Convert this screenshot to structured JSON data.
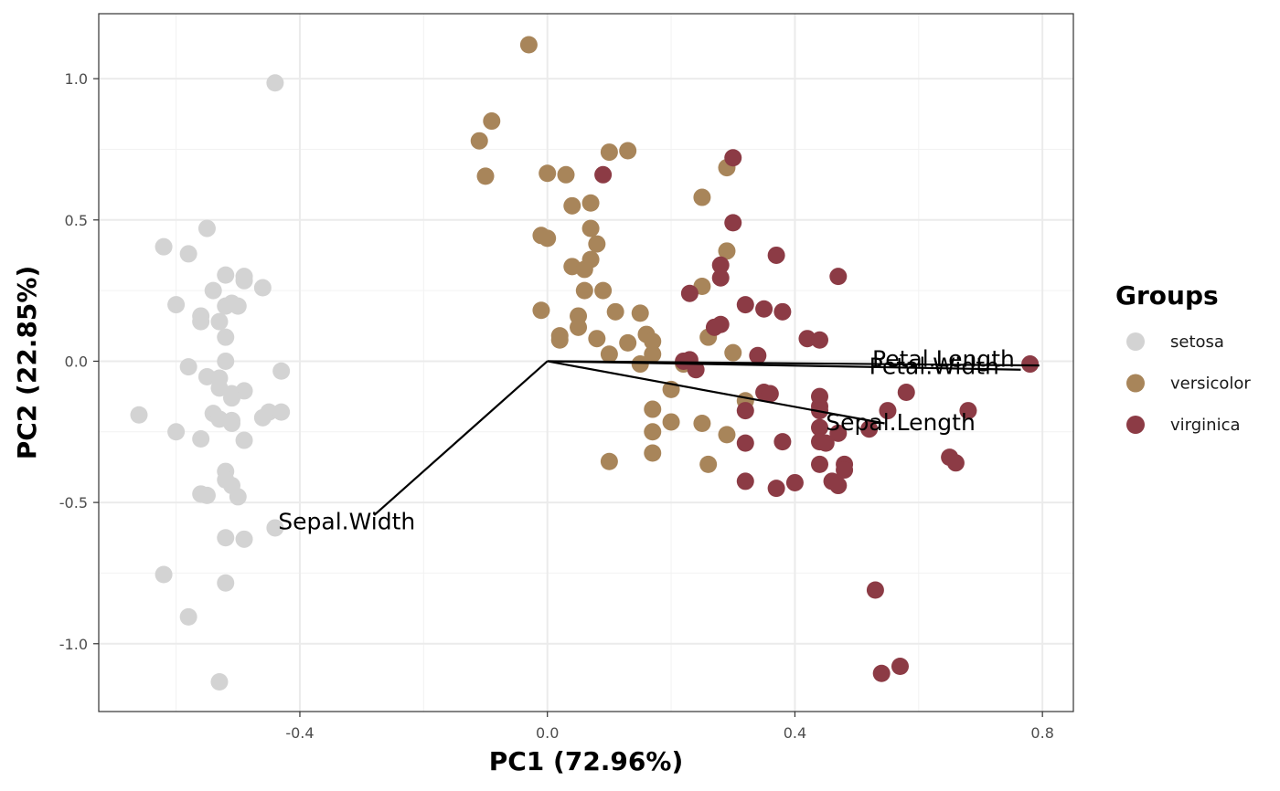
{
  "chart_data": {
    "type": "scatter",
    "xlabel": "PC1 (72.96%)",
    "ylabel": "PC2 (22.85%)",
    "xlim": [
      -0.725,
      0.85
    ],
    "ylim": [
      -1.24,
      1.23
    ],
    "x_ticks": [
      {
        "value": -0.4,
        "label": "-0.4"
      },
      {
        "value": 0.0,
        "label": "0.0"
      },
      {
        "value": 0.4,
        "label": "0.4"
      },
      {
        "value": 0.8,
        "label": "0.8"
      }
    ],
    "y_ticks": [
      {
        "value": -1.0,
        "label": "-1.0"
      },
      {
        "value": -0.5,
        "label": "-0.5"
      },
      {
        "value": 0.0,
        "label": "0.0"
      },
      {
        "value": 0.5,
        "label": "0.5"
      },
      {
        "value": 1.0,
        "label": "1.0"
      }
    ],
    "grid": true,
    "legend": {
      "title": "Groups",
      "position": "right"
    },
    "series": [
      {
        "name": "setosa",
        "color": "#d3d3d3",
        "points": [
          [
            -0.44,
            0.985
          ],
          [
            -0.55,
            0.47
          ],
          [
            -0.62,
            0.405
          ],
          [
            -0.58,
            0.38
          ],
          [
            -0.52,
            0.305
          ],
          [
            -0.49,
            0.3
          ],
          [
            -0.49,
            0.285
          ],
          [
            -0.46,
            0.26
          ],
          [
            -0.54,
            0.25
          ],
          [
            -0.6,
            0.2
          ],
          [
            -0.51,
            0.205
          ],
          [
            -0.52,
            0.195
          ],
          [
            -0.5,
            0.195
          ],
          [
            -0.56,
            0.16
          ],
          [
            -0.53,
            0.14
          ],
          [
            -0.56,
            0.14
          ],
          [
            -0.52,
            0.085
          ],
          [
            -0.52,
            0.0
          ],
          [
            -0.58,
            -0.02
          ],
          [
            -0.43,
            -0.035
          ],
          [
            -0.55,
            -0.055
          ],
          [
            -0.53,
            -0.06
          ],
          [
            -0.53,
            -0.095
          ],
          [
            -0.49,
            -0.105
          ],
          [
            -0.51,
            -0.115
          ],
          [
            -0.51,
            -0.13
          ],
          [
            -0.54,
            -0.185
          ],
          [
            -0.45,
            -0.18
          ],
          [
            -0.43,
            -0.18
          ],
          [
            -0.46,
            -0.2
          ],
          [
            -0.53,
            -0.205
          ],
          [
            -0.51,
            -0.21
          ],
          [
            -0.51,
            -0.22
          ],
          [
            -0.66,
            -0.19
          ],
          [
            -0.6,
            -0.25
          ],
          [
            -0.56,
            -0.275
          ],
          [
            -0.49,
            -0.28
          ],
          [
            -0.52,
            -0.39
          ],
          [
            -0.52,
            -0.42
          ],
          [
            -0.51,
            -0.44
          ],
          [
            -0.56,
            -0.47
          ],
          [
            -0.55,
            -0.475
          ],
          [
            -0.5,
            -0.48
          ],
          [
            -0.44,
            -0.59
          ],
          [
            -0.52,
            -0.625
          ],
          [
            -0.49,
            -0.63
          ],
          [
            -0.62,
            -0.755
          ],
          [
            -0.52,
            -0.785
          ],
          [
            -0.58,
            -0.905
          ],
          [
            -0.53,
            -1.135
          ]
        ]
      },
      {
        "name": "versicolor",
        "color": "#a8855a",
        "points": [
          [
            -0.03,
            1.12
          ],
          [
            -0.09,
            0.85
          ],
          [
            -0.11,
            0.78
          ],
          [
            -0.1,
            0.655
          ],
          [
            0.0,
            0.665
          ],
          [
            0.03,
            0.66
          ],
          [
            0.1,
            0.74
          ],
          [
            0.13,
            0.745
          ],
          [
            0.04,
            0.55
          ],
          [
            0.07,
            0.56
          ],
          [
            0.29,
            0.685
          ],
          [
            0.25,
            0.58
          ],
          [
            -0.01,
            0.445
          ],
          [
            0.0,
            0.435
          ],
          [
            0.07,
            0.47
          ],
          [
            0.08,
            0.415
          ],
          [
            0.07,
            0.36
          ],
          [
            0.04,
            0.335
          ],
          [
            0.06,
            0.325
          ],
          [
            0.29,
            0.39
          ],
          [
            0.25,
            0.265
          ],
          [
            0.06,
            0.25
          ],
          [
            0.09,
            0.25
          ],
          [
            -0.01,
            0.18
          ],
          [
            0.11,
            0.175
          ],
          [
            0.15,
            0.17
          ],
          [
            0.05,
            0.16
          ],
          [
            0.05,
            0.12
          ],
          [
            0.02,
            0.09
          ],
          [
            0.02,
            0.075
          ],
          [
            0.08,
            0.08
          ],
          [
            0.16,
            0.095
          ],
          [
            0.13,
            0.065
          ],
          [
            0.17,
            0.07
          ],
          [
            0.26,
            0.085
          ],
          [
            0.1,
            0.025
          ],
          [
            0.17,
            0.025
          ],
          [
            0.3,
            0.03
          ],
          [
            0.15,
            -0.01
          ],
          [
            0.22,
            -0.01
          ],
          [
            0.2,
            -0.1
          ],
          [
            0.32,
            -0.14
          ],
          [
            0.17,
            -0.17
          ],
          [
            0.2,
            -0.215
          ],
          [
            0.25,
            -0.22
          ],
          [
            0.17,
            -0.25
          ],
          [
            0.29,
            -0.26
          ],
          [
            0.17,
            -0.325
          ],
          [
            0.1,
            -0.355
          ],
          [
            0.26,
            -0.365
          ]
        ]
      },
      {
        "name": "virginica",
        "color": "#8c3b45",
        "points": [
          [
            0.3,
            0.72
          ],
          [
            0.09,
            0.66
          ],
          [
            0.3,
            0.49
          ],
          [
            0.37,
            0.375
          ],
          [
            0.28,
            0.34
          ],
          [
            0.47,
            0.3
          ],
          [
            0.28,
            0.295
          ],
          [
            0.23,
            0.24
          ],
          [
            0.32,
            0.2
          ],
          [
            0.35,
            0.185
          ],
          [
            0.38,
            0.175
          ],
          [
            0.28,
            0.13
          ],
          [
            0.27,
            0.12
          ],
          [
            0.42,
            0.08
          ],
          [
            0.44,
            0.075
          ],
          [
            0.34,
            0.02
          ],
          [
            0.22,
            0.0
          ],
          [
            0.23,
            0.005
          ],
          [
            0.24,
            -0.03
          ],
          [
            0.78,
            -0.01
          ],
          [
            0.35,
            -0.11
          ],
          [
            0.36,
            -0.115
          ],
          [
            0.44,
            -0.125
          ],
          [
            0.58,
            -0.11
          ],
          [
            0.44,
            -0.16
          ],
          [
            0.44,
            -0.175
          ],
          [
            0.55,
            -0.175
          ],
          [
            0.68,
            -0.175
          ],
          [
            0.32,
            -0.175
          ],
          [
            0.44,
            -0.235
          ],
          [
            0.52,
            -0.24
          ],
          [
            0.47,
            -0.255
          ],
          [
            0.44,
            -0.285
          ],
          [
            0.45,
            -0.29
          ],
          [
            0.38,
            -0.285
          ],
          [
            0.32,
            -0.29
          ],
          [
            0.65,
            -0.34
          ],
          [
            0.66,
            -0.36
          ],
          [
            0.48,
            -0.365
          ],
          [
            0.44,
            -0.365
          ],
          [
            0.48,
            -0.385
          ],
          [
            0.46,
            -0.425
          ],
          [
            0.47,
            -0.44
          ],
          [
            0.4,
            -0.43
          ],
          [
            0.32,
            -0.425
          ],
          [
            0.37,
            -0.45
          ],
          [
            0.53,
            -0.81
          ],
          [
            0.57,
            -1.08
          ],
          [
            0.54,
            -1.105
          ]
        ]
      }
    ],
    "vectors": [
      {
        "label": "Sepal.Length",
        "x": 0.545,
        "y": -0.22,
        "label_x": 0.45,
        "label_y": -0.245
      },
      {
        "label": "Sepal.Width",
        "x": -0.28,
        "y": -0.545,
        "label_x": -0.435,
        "label_y": -0.595
      },
      {
        "label": "Petal.Length",
        "x": 0.795,
        "y": -0.015,
        "label_x": 0.525,
        "label_y": -0.02
      },
      {
        "label": "Petal.Width",
        "x": 0.765,
        "y": -0.03,
        "label_x": 0.52,
        "label_y": -0.045
      }
    ]
  }
}
